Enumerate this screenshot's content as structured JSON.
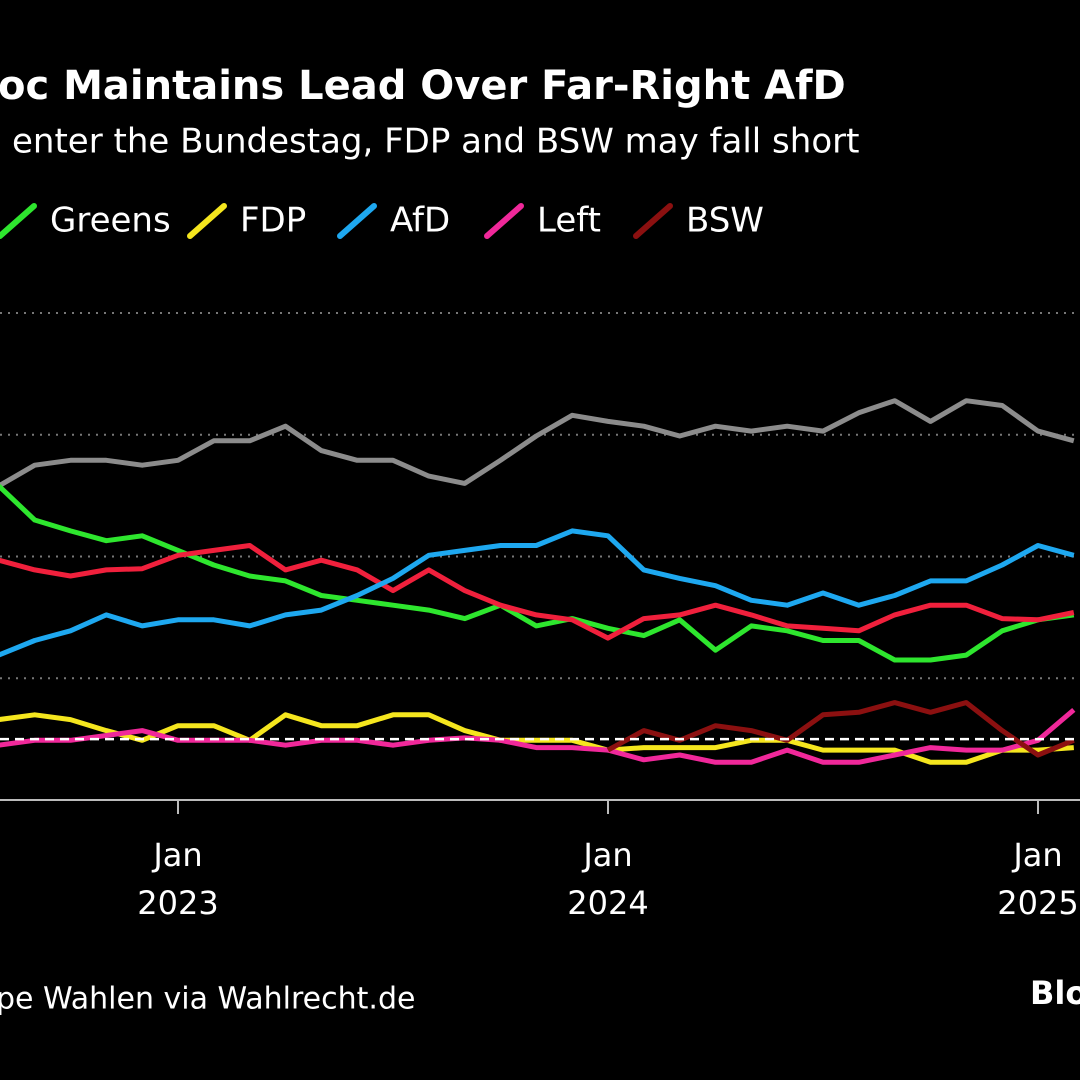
{
  "chart_data": {
    "type": "line",
    "title": "oc Maintains Lead Over Far-Right AfD",
    "subtitle": "enter the Bundestag, FDP and BSW may fall short",
    "source": "pe Wahlen via Wahlrecht.de",
    "brand": "Blo",
    "x": [
      "2022-08",
      "2022-09",
      "2022-10",
      "2022-11",
      "2022-12",
      "2023-01",
      "2023-02",
      "2023-03",
      "2023-04",
      "2023-05",
      "2023-06",
      "2023-07",
      "2023-08",
      "2023-09",
      "2023-10",
      "2023-11",
      "2023-12",
      "2024-01",
      "2024-02",
      "2024-03",
      "2024-04",
      "2024-05",
      "2024-06",
      "2024-07",
      "2024-08",
      "2024-09",
      "2024-10",
      "2024-11",
      "2024-12",
      "2025-01",
      "2025-02"
    ],
    "xticks": [
      {
        "value": "2023-01",
        "label": "Jan 2023"
      },
      {
        "value": "2024-01",
        "label": "Jan 2024"
      },
      {
        "value": "2025-01",
        "label": "Jan 2025"
      }
    ],
    "ylim": [
      0,
      40
    ],
    "yticks": [
      0,
      10,
      20,
      30,
      40
    ],
    "grid": true,
    "threshold": 5,
    "series": [
      {
        "color": "#8c8c8c",
        "values": [
          25.8,
          27.5,
          27.9,
          27.9,
          27.5,
          27.9,
          29.5,
          29.5,
          30.7,
          28.7,
          27.9,
          27.9,
          26.6,
          26,
          27.9,
          29.9,
          31.6,
          31.1,
          30.7,
          29.9,
          30.7,
          30.3,
          30.7,
          30.3,
          31.8,
          32.8,
          31.1,
          32.8,
          32.4,
          30.3,
          29.5
        ]
      },
      {
        "name": "Greens",
        "color": "#2ee62e",
        "values": [
          25.8,
          23,
          22.1,
          21.3,
          21.7,
          20.5,
          19.3,
          18.4,
          18,
          16.8,
          16.4,
          16,
          15.6,
          14.9,
          16,
          14.3,
          14.9,
          14.1,
          13.5,
          14.8,
          12.3,
          14.3,
          13.9,
          13.1,
          13.1,
          11.5,
          11.5,
          11.9,
          13.9,
          14.8,
          15.2
        ]
      },
      {
        "color": "#f0203c",
        "values": [
          19.7,
          18.9,
          18.4,
          18.9,
          19,
          20.1,
          20.5,
          20.9,
          18.9,
          19.7,
          18.9,
          17.2,
          18.9,
          17.2,
          16,
          15.2,
          14.8,
          13.3,
          14.9,
          15.2,
          16,
          15.2,
          14.3,
          14.1,
          13.9,
          15.2,
          16,
          16,
          14.9,
          14.8,
          15.4
        ]
      },
      {
        "name": "FDP",
        "color": "#f5e61e",
        "values": [
          6.6,
          7,
          6.6,
          5.7,
          4.9,
          6.1,
          6.1,
          4.9,
          7,
          6.1,
          6.1,
          7,
          7,
          5.7,
          4.9,
          4.9,
          4.9,
          4.1,
          4.3,
          4.3,
          4.3,
          4.9,
          4.9,
          4.1,
          4.1,
          4.1,
          3.1,
          3.1,
          4.1,
          4.1,
          4.3
        ]
      },
      {
        "name": "AfD",
        "color": "#1ea8f0",
        "values": [
          11.9,
          13.1,
          13.9,
          15.2,
          14.3,
          14.8,
          14.8,
          14.3,
          15.2,
          15.6,
          16.8,
          18.2,
          20.1,
          20.5,
          20.9,
          20.9,
          22.1,
          21.7,
          18.9,
          18.2,
          17.6,
          16.4,
          16,
          17,
          16,
          16.8,
          18,
          18,
          19.3,
          20.9,
          20.1
        ]
      },
      {
        "name": "Left",
        "color": "#f0289a",
        "values": [
          4.5,
          4.9,
          4.9,
          5.3,
          5.7,
          4.9,
          4.9,
          4.9,
          4.5,
          4.9,
          4.9,
          4.5,
          4.9,
          5.1,
          4.9,
          4.3,
          4.3,
          4.1,
          3.3,
          3.7,
          3.1,
          3.1,
          4.1,
          3.1,
          3.1,
          3.7,
          4.3,
          4.1,
          4.1,
          4.9,
          7.4
        ]
      },
      {
        "name": "BSW",
        "color": "#8b1010",
        "values": [
          null,
          null,
          null,
          null,
          null,
          null,
          null,
          null,
          null,
          null,
          null,
          null,
          null,
          null,
          null,
          null,
          null,
          4.1,
          5.7,
          4.9,
          6.1,
          5.7,
          4.9,
          7,
          7.2,
          8,
          7.2,
          8,
          5.7,
          3.7,
          4.9
        ]
      }
    ]
  }
}
